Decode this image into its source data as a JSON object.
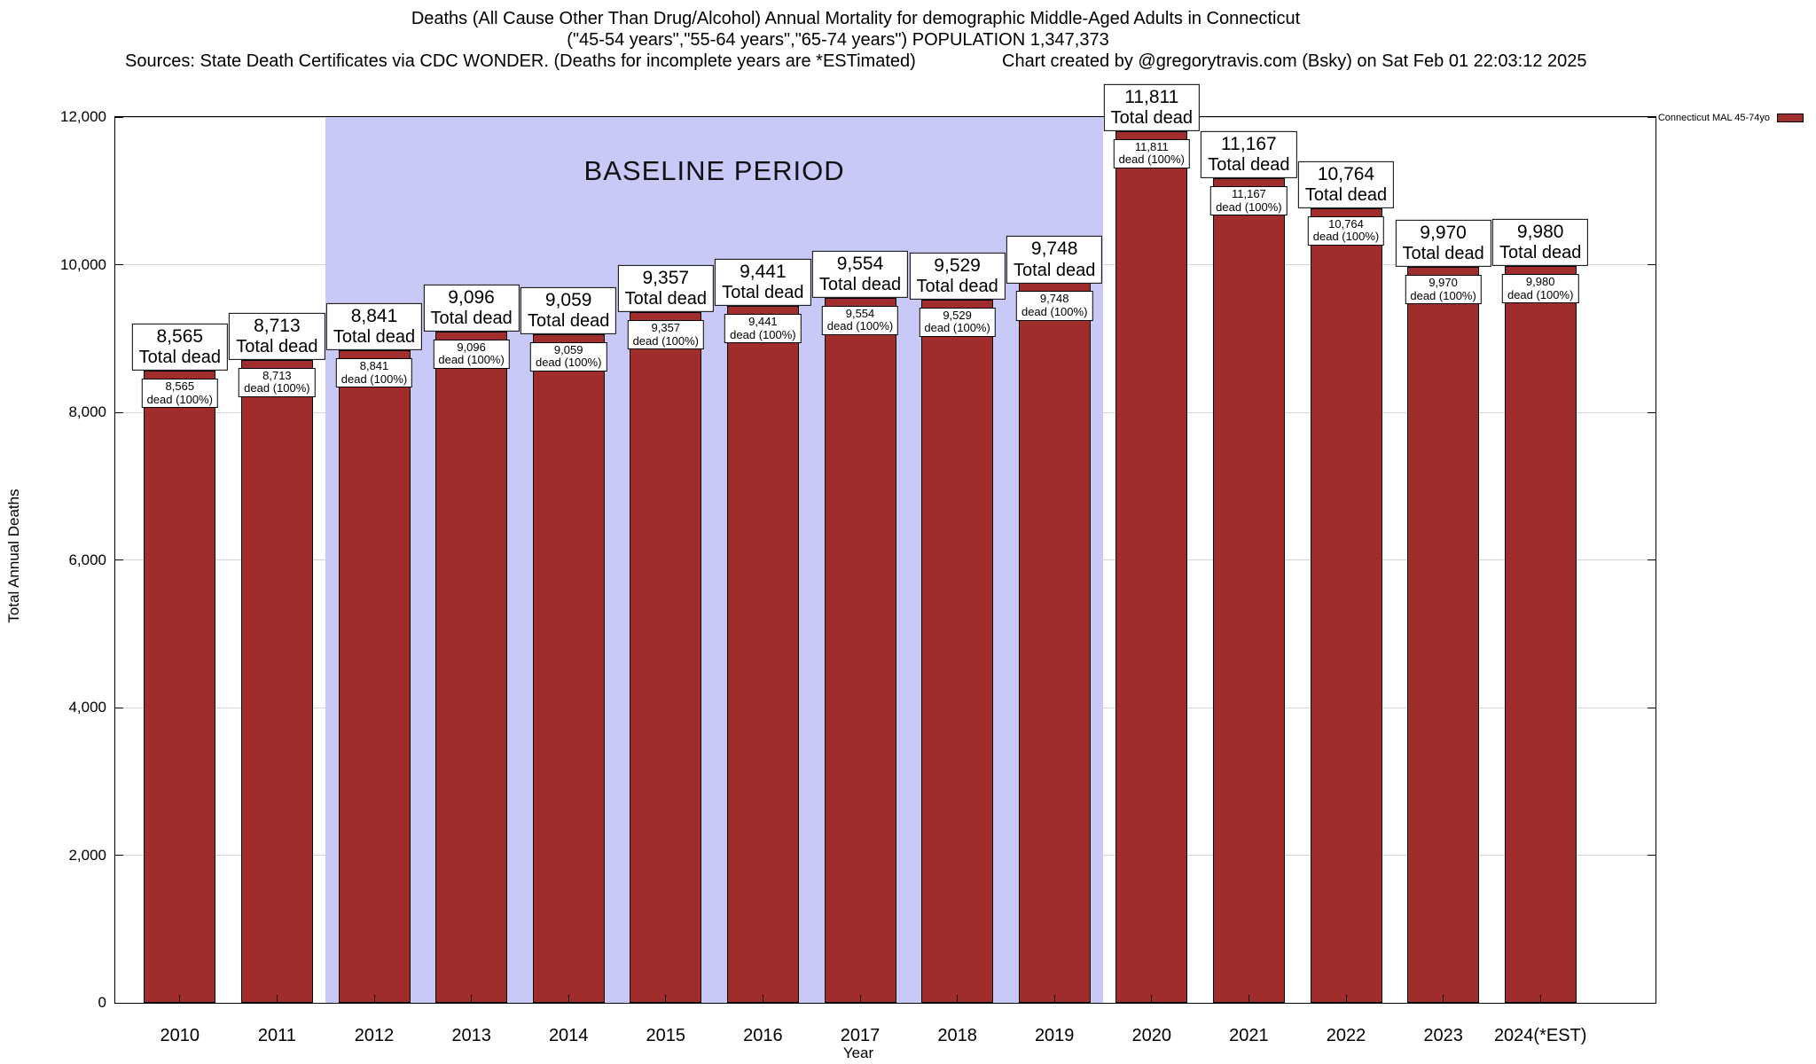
{
  "header": {
    "title_line1": "Deaths (All Cause Other Than Drug/Alcohol) Annual Mortality for demographic Middle-Aged Adults in Connecticut",
    "title_line2": "(\"45-54 years\",\"55-64 years\",\"65-74 years\") POPULATION 1,347,373",
    "sources": "Sources: State Death Certificates via CDC WONDER. (Deaths for incomplete years are *ESTimated)",
    "created_by": "Chart created by @gregorytravis.com (Bsky) on Sat Feb 01 22:03:12 2025"
  },
  "legend": {
    "label": "Connecticut MAL 45-74yo",
    "color": "#a02c2c"
  },
  "chart_data": {
    "type": "bar",
    "title": "Deaths (All Cause Other Than Drug/Alcohol) Annual Mortality for demographic Middle-Aged Adults in Connecticut",
    "subtitle": "(\"45-54 years\",\"55-64 years\",\"65-74 years\") POPULATION 1,347,373",
    "xlabel": "Year",
    "ylabel": "Total Annual Deaths",
    "ylim": [
      0,
      12000
    ],
    "ytick_interval": 2000,
    "y_ticks": [
      "0",
      "2,000",
      "4,000",
      "6,000",
      "8,000",
      "10,000",
      "12,000"
    ],
    "grid": true,
    "legend_position": "top-right-outside",
    "categories": [
      "2010",
      "2011",
      "2012",
      "2013",
      "2014",
      "2015",
      "2016",
      "2017",
      "2018",
      "2019",
      "2020",
      "2021",
      "2022",
      "2023",
      "2024(*EST)"
    ],
    "values": [
      8565,
      8713,
      8841,
      9096,
      9059,
      9357,
      9441,
      9554,
      9529,
      9748,
      11811,
      11167,
      10764,
      9970,
      9980
    ],
    "bar_color": "#a02c2c",
    "bar_border_color": "#000000",
    "top_label_suffix": "Total dead",
    "inner_label_suffix": "dead (100%)",
    "baseline": {
      "label": "BASELINE PERIOD",
      "start_category": "2012",
      "end_category": "2019",
      "start_index": 2,
      "end_index": 9,
      "color": "#c9c9f8"
    }
  }
}
